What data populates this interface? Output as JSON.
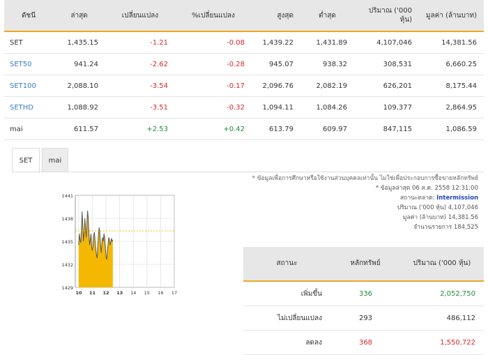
{
  "index_table": {
    "headers": [
      "ดัชนี",
      "ล่าสุด",
      "เปลี่ยนแปลง",
      "%เปลี่ยนแปลง",
      "สูงสุด",
      "ต่ำสุด",
      "ปริมาณ ('000 หุ้น)",
      "มูลค่า (ล้านบาท)"
    ],
    "rows": [
      {
        "name": "SET",
        "last": "1,435.15",
        "change": "-1.21",
        "pct": "-0.08",
        "high": "1,439.22",
        "low": "1,431.89",
        "volume": "4,107,046",
        "value": "14,381.56"
      },
      {
        "name": "SET50",
        "last": "941.24",
        "change": "-2.62",
        "pct": "-0.28",
        "high": "945.07",
        "low": "938.32",
        "volume": "308,531",
        "value": "6,660.25"
      },
      {
        "name": "SET100",
        "last": "2,088.10",
        "change": "-3.54",
        "pct": "-0.17",
        "high": "2,096.76",
        "low": "2,082.19",
        "volume": "626,201",
        "value": "8,175.44"
      },
      {
        "name": "SETHD",
        "last": "1,088.92",
        "change": "-3.51",
        "pct": "-0.32",
        "high": "1,094.11",
        "low": "1,084.26",
        "volume": "109,377",
        "value": "2,864.95"
      },
      {
        "name": "mai",
        "last": "611.57",
        "change": "+2.53",
        "pct": "+0.42",
        "high": "613.79",
        "low": "609.97",
        "volume": "847,115",
        "value": "1,086.59"
      }
    ]
  },
  "tabs": [
    "SET",
    "mai"
  ],
  "info": {
    "note": "* ข้อมูลเพื่อการศึกษาหรือใช้งานส่วนบุคคลเท่านั้น ไม่ใช่เพื่อประกอบการซื้อขายหลักทรัพย์",
    "latest_label": "* ข้อมูลล่าสุด",
    "latest_value": "06 ส.ค. 2558 12:31:00",
    "market_status_label": "สถานะตลาด:",
    "market_status_value": "Intermission",
    "volume_label": "ปริมาณ ('000 หุ้น)",
    "volume_value": "4,107,046",
    "value_label": "มูลค่า (ล้านบาท)",
    "value_value": "14,381.56",
    "trades_label": "จำนวนรายการ",
    "trades_value": "184,525"
  },
  "stat_table": {
    "headers": [
      "สถานะ",
      "หลักทรัพย์",
      "ปริมาณ ('000 หุ้น)"
    ],
    "rows": [
      {
        "status": "เพิ่มขึ้น",
        "count": "336",
        "volume": "2,052,750",
        "color": "#1e8a3c"
      },
      {
        "status": "ไม่เปลี่ยนแปลง",
        "count": "293",
        "volume": "486,112",
        "color": "#333333"
      },
      {
        "status": "ลดลง",
        "count": "368",
        "volume": "1,550,722",
        "color": "#d9262b"
      }
    ]
  },
  "chart_data": {
    "type": "area",
    "x_ticks": [
      "10",
      "11",
      "12",
      "13",
      "14",
      "15",
      "16",
      "17"
    ],
    "y_ticks": [
      "1441",
      "1438",
      "1435",
      "1432",
      "1429"
    ],
    "ylim": [
      1429,
      1441
    ],
    "xlim": [
      9.75,
      17
    ],
    "reference_line": 1436.36,
    "series": [
      {
        "x": [
          10.0,
          10.05,
          10.1,
          10.15,
          10.2,
          10.25,
          10.3,
          10.35,
          10.4,
          10.45,
          10.5,
          10.55,
          10.6,
          10.65,
          10.7,
          10.75,
          10.8,
          10.85,
          10.9,
          10.95,
          11.0,
          11.05,
          11.1,
          11.15,
          11.2,
          11.25,
          11.3,
          11.35,
          11.4,
          11.45,
          11.5,
          11.55,
          11.6,
          11.65,
          11.7,
          11.75,
          11.8,
          11.85,
          11.9,
          11.95,
          12.0,
          12.05,
          12.1,
          12.15,
          12.2,
          12.25,
          12.3,
          12.35,
          12.4,
          12.45,
          12.5
        ],
        "y": [
          1434.5,
          1436.0,
          1435.2,
          1434.8,
          1436.5,
          1438.9,
          1437.0,
          1435.0,
          1436.2,
          1438.0,
          1436.8,
          1435.5,
          1437.2,
          1439.0,
          1438.0,
          1436.0,
          1434.5,
          1435.2,
          1436.0,
          1434.2,
          1433.8,
          1434.5,
          1435.8,
          1436.2,
          1435.0,
          1434.0,
          1433.2,
          1432.8,
          1434.5,
          1436.0,
          1436.8,
          1436.0,
          1434.5,
          1433.5,
          1434.8,
          1435.5,
          1435.0,
          1436.0,
          1435.5,
          1434.2,
          1433.0,
          1432.6,
          1433.8,
          1434.6,
          1435.5,
          1435.2,
          1434.5,
          1434.9,
          1435.4,
          1435.0,
          1435.15
        ]
      }
    ],
    "colors": {
      "fill": "#f5b800",
      "line": "#555555",
      "reference": "#f5b800"
    }
  }
}
